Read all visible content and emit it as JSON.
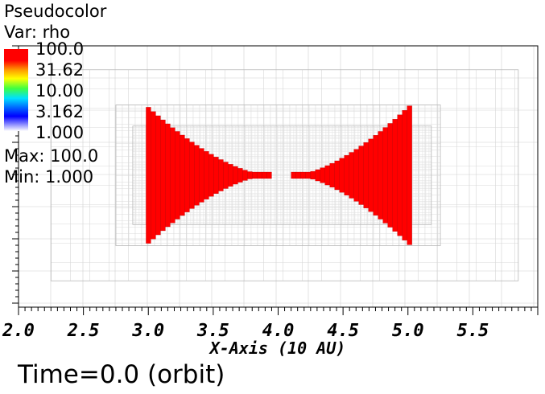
{
  "legend": {
    "plot_type": "Pseudocolor",
    "var_label": "Var: rho",
    "ticks": [
      "100.0",
      "31.62",
      "10.00",
      "3.162",
      "1.000"
    ],
    "max_label": "Max:  100.0",
    "min_label": "Min:  1.000",
    "colors": {
      "high": "#ff0000",
      "mid_high": "#ffff00",
      "mid": "#00ff00",
      "mid_low": "#00ffff",
      "low": "#0000ff",
      "floor": "#ffffff"
    }
  },
  "footer": {
    "time_label": "Time=0.0 (orbit)"
  },
  "chart_data": {
    "type": "heatmap",
    "title": "",
    "xlabel": "X-Axis (10 AU)",
    "ylabel": "",
    "x_ticks": [
      "2.0",
      "2.5",
      "3.0",
      "3.5",
      "4.0",
      "4.5",
      "5.0",
      "5.5"
    ],
    "x_tick_values": [
      2.0,
      2.5,
      3.0,
      3.5,
      4.0,
      4.5,
      5.0,
      5.5
    ],
    "xlim": [
      2.0,
      6.0
    ],
    "ylim": [
      -1.0,
      1.0
    ],
    "color_scale": "log",
    "value_range": [
      1.0,
      100.0
    ],
    "max_value": 100.0,
    "min_value": 1.0,
    "mesh_regions": [
      {
        "x0": 2.0,
        "x1": 6.0,
        "y0": -1.0,
        "y1": 1.0,
        "level": 0
      },
      {
        "x0": 2.25,
        "x1": 5.85,
        "y0": -0.75,
        "y1": 0.75,
        "level": 1
      },
      {
        "x0": 2.75,
        "x1": 5.25,
        "y0": -0.5,
        "y1": 0.5,
        "level": 2
      },
      {
        "x0": 2.88,
        "x1": 5.18,
        "y0": -0.35,
        "y1": 0.35,
        "level": 3
      }
    ],
    "lobes": [
      {
        "name": "left",
        "apex_x": 3.95,
        "wide_x": 3.0,
        "half_height": 0.5,
        "value": 100.0
      },
      {
        "name": "right",
        "apex_x": 4.1,
        "wide_x": 5.0,
        "half_height": 0.5,
        "value": 100.0
      }
    ],
    "y_center": 0.0
  }
}
